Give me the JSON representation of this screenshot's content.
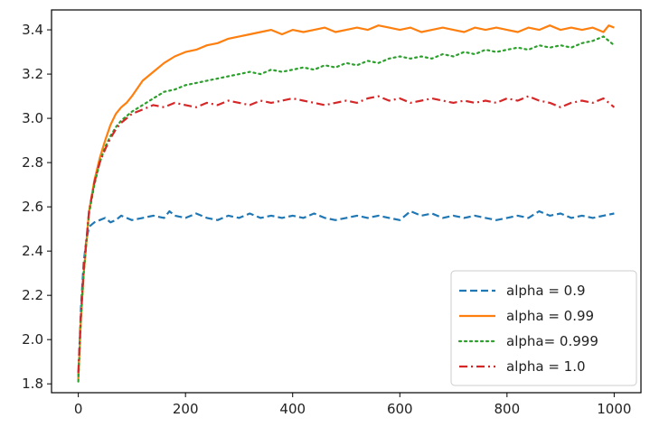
{
  "chart_data": {
    "type": "line",
    "title": "",
    "xlabel": "",
    "ylabel": "",
    "xlim": [
      -50,
      1050
    ],
    "ylim": [
      1.76,
      3.49
    ],
    "x_ticks": [
      0,
      200,
      400,
      600,
      800,
      1000
    ],
    "x_tick_labels": [
      "0",
      "200",
      "400",
      "600",
      "800",
      "1000"
    ],
    "y_ticks": [
      1.8,
      2.0,
      2.2,
      2.4,
      2.6,
      2.8,
      3.0,
      3.2,
      3.4
    ],
    "y_tick_labels": [
      "1.8",
      "2.0",
      "2.2",
      "2.4",
      "2.6",
      "2.8",
      "3.0",
      "3.2",
      "3.4"
    ],
    "grid": false,
    "legend_position": "lower-right",
    "series": [
      {
        "name": "alpha = 0.9",
        "color": "#1f77b4",
        "linestyle": "dashed",
        "x": [
          0,
          5,
          10,
          15,
          20,
          25,
          30,
          40,
          50,
          60,
          70,
          80,
          90,
          100,
          120,
          140,
          160,
          170,
          180,
          200,
          220,
          240,
          260,
          280,
          300,
          320,
          340,
          360,
          380,
          400,
          420,
          440,
          460,
          480,
          500,
          520,
          540,
          560,
          580,
          600,
          620,
          640,
          660,
          680,
          700,
          720,
          740,
          760,
          780,
          800,
          820,
          840,
          860,
          880,
          900,
          920,
          940,
          960,
          980,
          1000
        ],
        "y": [
          1.83,
          2.15,
          2.35,
          2.45,
          2.51,
          2.52,
          2.53,
          2.54,
          2.55,
          2.53,
          2.54,
          2.56,
          2.55,
          2.54,
          2.55,
          2.56,
          2.55,
          2.58,
          2.56,
          2.55,
          2.57,
          2.55,
          2.54,
          2.56,
          2.55,
          2.57,
          2.55,
          2.56,
          2.55,
          2.56,
          2.55,
          2.57,
          2.55,
          2.54,
          2.55,
          2.56,
          2.55,
          2.56,
          2.55,
          2.54,
          2.58,
          2.56,
          2.57,
          2.55,
          2.56,
          2.55,
          2.56,
          2.55,
          2.54,
          2.55,
          2.56,
          2.55,
          2.58,
          2.56,
          2.57,
          2.55,
          2.56,
          2.55,
          2.56,
          2.57
        ]
      },
      {
        "name": "alpha = 0.99",
        "color": "#ff7f0e",
        "linestyle": "solid",
        "x": [
          0,
          5,
          10,
          20,
          30,
          40,
          50,
          60,
          70,
          80,
          90,
          100,
          120,
          140,
          160,
          180,
          200,
          220,
          240,
          260,
          280,
          300,
          320,
          340,
          360,
          380,
          400,
          420,
          440,
          460,
          480,
          500,
          520,
          540,
          560,
          580,
          600,
          620,
          640,
          660,
          680,
          700,
          720,
          740,
          760,
          780,
          800,
          820,
          840,
          860,
          880,
          900,
          920,
          940,
          960,
          980,
          990,
          1000
        ],
        "y": [
          1.82,
          2.1,
          2.3,
          2.58,
          2.72,
          2.82,
          2.9,
          2.97,
          3.02,
          3.05,
          3.07,
          3.1,
          3.17,
          3.21,
          3.25,
          3.28,
          3.3,
          3.31,
          3.33,
          3.34,
          3.36,
          3.37,
          3.38,
          3.39,
          3.4,
          3.38,
          3.4,
          3.39,
          3.4,
          3.41,
          3.39,
          3.4,
          3.41,
          3.4,
          3.42,
          3.41,
          3.4,
          3.41,
          3.39,
          3.4,
          3.41,
          3.4,
          3.39,
          3.41,
          3.4,
          3.41,
          3.4,
          3.39,
          3.41,
          3.4,
          3.42,
          3.4,
          3.41,
          3.4,
          3.41,
          3.39,
          3.42,
          3.41
        ]
      },
      {
        "name": "alpha= 0.999",
        "color": "#2ca02c",
        "linestyle": "dotted",
        "x": [
          0,
          5,
          10,
          20,
          30,
          40,
          50,
          60,
          70,
          80,
          90,
          100,
          120,
          140,
          160,
          180,
          200,
          220,
          240,
          260,
          280,
          300,
          320,
          340,
          360,
          380,
          400,
          420,
          440,
          460,
          480,
          500,
          520,
          540,
          560,
          580,
          600,
          620,
          640,
          660,
          680,
          700,
          720,
          740,
          760,
          780,
          800,
          820,
          840,
          860,
          880,
          900,
          920,
          940,
          960,
          980,
          1000
        ],
        "y": [
          1.81,
          2.1,
          2.3,
          2.57,
          2.7,
          2.8,
          2.87,
          2.92,
          2.96,
          2.99,
          3.01,
          3.03,
          3.06,
          3.09,
          3.12,
          3.13,
          3.15,
          3.16,
          3.17,
          3.18,
          3.19,
          3.2,
          3.21,
          3.2,
          3.22,
          3.21,
          3.22,
          3.23,
          3.22,
          3.24,
          3.23,
          3.25,
          3.24,
          3.26,
          3.25,
          3.27,
          3.28,
          3.27,
          3.28,
          3.27,
          3.29,
          3.28,
          3.3,
          3.29,
          3.31,
          3.3,
          3.31,
          3.32,
          3.31,
          3.33,
          3.32,
          3.33,
          3.32,
          3.34,
          3.35,
          3.37,
          3.33
        ]
      },
      {
        "name": "alpha = 1.0",
        "color": "#d62728",
        "linestyle": "dashdot",
        "x": [
          0,
          5,
          10,
          20,
          30,
          40,
          50,
          60,
          70,
          80,
          90,
          100,
          120,
          140,
          160,
          180,
          200,
          220,
          240,
          260,
          280,
          300,
          320,
          340,
          360,
          380,
          400,
          420,
          440,
          460,
          480,
          500,
          520,
          540,
          560,
          580,
          600,
          620,
          640,
          660,
          680,
          700,
          720,
          740,
          760,
          780,
          800,
          820,
          840,
          860,
          880,
          900,
          920,
          940,
          960,
          980,
          1000
        ],
        "y": [
          1.85,
          2.12,
          2.32,
          2.58,
          2.71,
          2.8,
          2.86,
          2.91,
          2.95,
          2.98,
          3.0,
          3.02,
          3.04,
          3.06,
          3.05,
          3.07,
          3.06,
          3.05,
          3.07,
          3.06,
          3.08,
          3.07,
          3.06,
          3.08,
          3.07,
          3.08,
          3.09,
          3.08,
          3.07,
          3.06,
          3.07,
          3.08,
          3.07,
          3.09,
          3.1,
          3.08,
          3.09,
          3.07,
          3.08,
          3.09,
          3.08,
          3.07,
          3.08,
          3.07,
          3.08,
          3.07,
          3.09,
          3.08,
          3.1,
          3.08,
          3.07,
          3.05,
          3.07,
          3.08,
          3.07,
          3.09,
          3.05
        ]
      }
    ]
  }
}
